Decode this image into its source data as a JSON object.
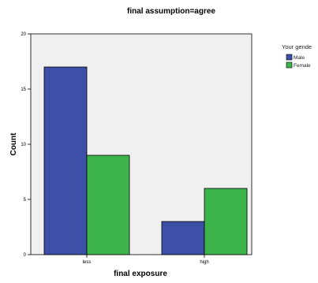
{
  "chart_data": {
    "type": "bar",
    "title": "final assumption=agree",
    "xlabel": "final exposure",
    "ylabel": "Count",
    "categories": [
      "less",
      "high"
    ],
    "series": [
      {
        "name": "Male",
        "values": [
          17,
          3
        ],
        "color": "#3d4fa6"
      },
      {
        "name": "Female",
        "values": [
          9,
          6
        ],
        "color": "#3cb44b"
      }
    ],
    "ylim": [
      0,
      20
    ],
    "yticks": [
      0,
      5,
      10,
      15,
      20
    ],
    "legend_title": "Your gende",
    "legend_placement": "right",
    "grid": false,
    "plot_background": "#f0f0f0"
  }
}
